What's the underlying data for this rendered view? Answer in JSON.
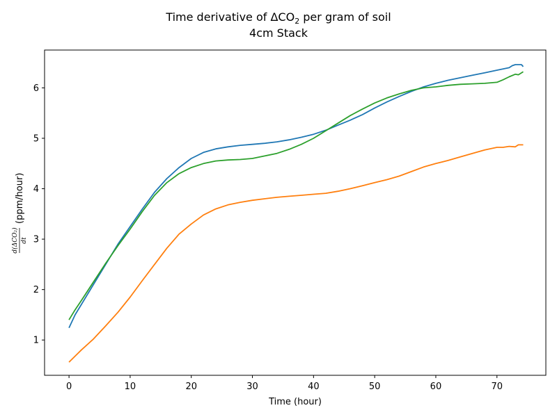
{
  "chart_data": {
    "type": "line",
    "title": "Time derivative of ΔCO",
    "title_sub": "2",
    "title_suffix": " per gram of soil",
    "subtitle": "4cm Stack",
    "xlabel": "Time (hour)",
    "ylabel_fraction_num": "d(ΔCO₂)",
    "ylabel_fraction_den": "dt",
    "ylabel_suffix": "(ppm/hour)",
    "xlim": [
      -4,
      78
    ],
    "ylim": [
      0.3,
      6.75
    ],
    "xticks": [
      0,
      10,
      20,
      30,
      40,
      50,
      60,
      70
    ],
    "yticks": [
      1,
      2,
      3,
      4,
      5,
      6
    ],
    "grid": false,
    "series": [
      {
        "color": "#1f77b4",
        "x": [
          0,
          1,
          2,
          4,
          6,
          8,
          10,
          12,
          14,
          16,
          18,
          20,
          22,
          24,
          26,
          28,
          30,
          32,
          34,
          36,
          38,
          40,
          42,
          44,
          46,
          48,
          50,
          52,
          54,
          56,
          58,
          60,
          62,
          64,
          66,
          68,
          70,
          72,
          72.5,
          73,
          74,
          74.3
        ],
        "y": [
          1.24,
          1.5,
          1.7,
          2.1,
          2.5,
          2.9,
          3.25,
          3.6,
          3.93,
          4.2,
          4.42,
          4.6,
          4.72,
          4.79,
          4.83,
          4.86,
          4.88,
          4.9,
          4.93,
          4.97,
          5.02,
          5.08,
          5.16,
          5.26,
          5.36,
          5.47,
          5.6,
          5.72,
          5.83,
          5.93,
          6.02,
          6.09,
          6.15,
          6.2,
          6.25,
          6.3,
          6.35,
          6.4,
          6.44,
          6.46,
          6.46,
          6.42
        ]
      },
      {
        "color": "#ff7f0e",
        "x": [
          0,
          1,
          2,
          4,
          6,
          8,
          10,
          12,
          14,
          16,
          18,
          20,
          22,
          24,
          26,
          28,
          30,
          32,
          34,
          36,
          38,
          40,
          42,
          44,
          46,
          48,
          50,
          52,
          54,
          56,
          58,
          60,
          62,
          64,
          66,
          68,
          70,
          71,
          72,
          73,
          73.5,
          74.3
        ],
        "y": [
          0.56,
          0.68,
          0.8,
          1.02,
          1.28,
          1.55,
          1.85,
          2.18,
          2.5,
          2.82,
          3.1,
          3.3,
          3.48,
          3.6,
          3.68,
          3.73,
          3.77,
          3.8,
          3.83,
          3.85,
          3.87,
          3.89,
          3.91,
          3.95,
          4.0,
          4.06,
          4.12,
          4.18,
          4.25,
          4.34,
          4.43,
          4.5,
          4.56,
          4.63,
          4.7,
          4.77,
          4.82,
          4.82,
          4.84,
          4.83,
          4.87,
          4.87
        ]
      },
      {
        "color": "#2ca02c",
        "x": [
          0,
          1,
          2,
          4,
          6,
          8,
          10,
          12,
          14,
          16,
          18,
          20,
          22,
          24,
          26,
          28,
          30,
          32,
          34,
          36,
          38,
          40,
          42,
          44,
          46,
          48,
          50,
          52,
          54,
          56,
          58,
          60,
          62,
          64,
          66,
          68,
          70,
          71,
          72,
          73,
          73.5,
          74.3
        ],
        "y": [
          1.4,
          1.6,
          1.78,
          2.15,
          2.52,
          2.87,
          3.2,
          3.55,
          3.87,
          4.12,
          4.3,
          4.42,
          4.5,
          4.55,
          4.57,
          4.58,
          4.6,
          4.65,
          4.7,
          4.78,
          4.88,
          5.0,
          5.15,
          5.3,
          5.45,
          5.58,
          5.7,
          5.8,
          5.88,
          5.95,
          6.0,
          6.02,
          6.05,
          6.07,
          6.08,
          6.09,
          6.11,
          6.16,
          6.22,
          6.27,
          6.26,
          6.32
        ]
      }
    ]
  }
}
